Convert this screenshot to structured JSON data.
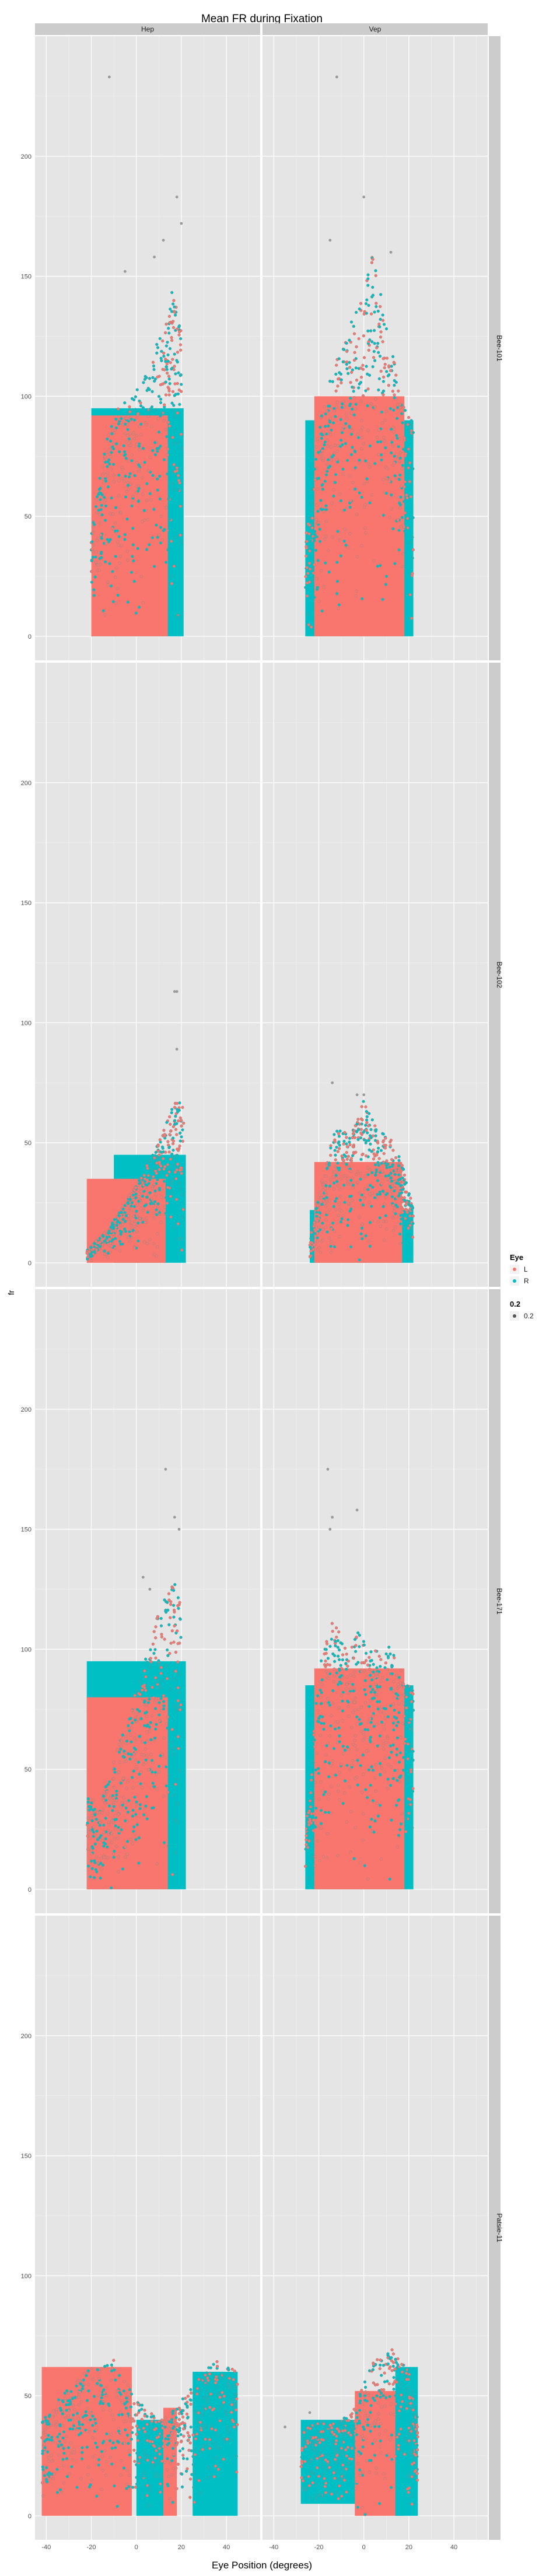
{
  "chart_data": {
    "type": "scatter",
    "title": "Mean FR during Fixation",
    "xlabel": "Eye Position (degrees)",
    "ylabel": "fr",
    "xlim": [
      -45,
      55
    ],
    "ylim": [
      -10,
      250
    ],
    "x_ticks": [
      -40,
      -20,
      0,
      20,
      40
    ],
    "x_tick_labels": [
      "-40",
      "-20",
      "0",
      "20",
      "40"
    ],
    "y_ticks": [
      0,
      50,
      100,
      150,
      200
    ],
    "y_tick_labels": [
      "0",
      "50",
      "100",
      "150",
      "200"
    ],
    "grid": true,
    "legend_position": "right",
    "facet_columns": [
      "Hep",
      "Vep"
    ],
    "facet_rows": [
      "Bee-101",
      "Bee-102",
      "Bee-171",
      "Patsie-11"
    ],
    "legend": {
      "eye_title": "Eye",
      "eye_entries": [
        {
          "label": "L",
          "color": "#F8766D"
        },
        {
          "label": "R",
          "color": "#00BFC4"
        }
      ],
      "size_title": "0.2",
      "size_entries": [
        {
          "label": "0.2"
        }
      ]
    },
    "colors": {
      "L": "#F8766D",
      "R": "#00BFC4",
      "panel_bg": "#E5E5E5",
      "strip_bg": "#CCCCCC",
      "grid": "#F2F2F2"
    },
    "panels": [
      {
        "row": "Bee-101",
        "col": "Hep",
        "bulk": [
          {
            "eye": "R",
            "x": [
              -20,
              21
            ],
            "y": [
              0,
              95
            ]
          },
          {
            "eye": "L",
            "x": [
              -20,
              14
            ],
            "y": [
              0,
              92
            ]
          }
        ],
        "profile": [
          [
            -20,
            42
          ],
          [
            -14,
            80
          ],
          [
            -8,
            95
          ],
          [
            -2,
            100
          ],
          [
            5,
            110
          ],
          [
            12,
            130
          ],
          [
            16,
            145
          ],
          [
            20,
            128
          ]
        ],
        "outliers": [
          {
            "x": -12,
            "y": 233
          },
          {
            "x": 12,
            "y": 165
          },
          {
            "x": 18,
            "y": 183
          },
          {
            "x": 20,
            "y": 172
          },
          {
            "x": -5,
            "y": 152
          },
          {
            "x": 8,
            "y": 158
          }
        ]
      },
      {
        "row": "Bee-101",
        "col": "Vep",
        "bulk": [
          {
            "eye": "R",
            "x": [
              -26,
              22
            ],
            "y": [
              0,
              90
            ]
          },
          {
            "eye": "L",
            "x": [
              -22,
              18
            ],
            "y": [
              0,
              100
            ]
          }
        ],
        "profile": [
          [
            -26,
            40
          ],
          [
            -20,
            88
          ],
          [
            -14,
            110
          ],
          [
            -8,
            125
          ],
          [
            -2,
            140
          ],
          [
            4,
            160
          ],
          [
            10,
            130
          ],
          [
            16,
            105
          ],
          [
            22,
            90
          ]
        ],
        "outliers": [
          {
            "x": -12,
            "y": 233
          },
          {
            "x": 0,
            "y": 183
          },
          {
            "x": -15,
            "y": 165
          },
          {
            "x": 12,
            "y": 160
          }
        ]
      },
      {
        "row": "Bee-102",
        "col": "Hep",
        "bulk": [
          {
            "eye": "R",
            "x": [
              -10,
              22
            ],
            "y": [
              0,
              45
            ]
          },
          {
            "eye": "L",
            "x": [
              -22,
              13
            ],
            "y": [
              0,
              35
            ]
          }
        ],
        "profile": [
          [
            -22,
            5
          ],
          [
            -15,
            12
          ],
          [
            -8,
            20
          ],
          [
            -2,
            30
          ],
          [
            4,
            40
          ],
          [
            10,
            50
          ],
          [
            16,
            65
          ],
          [
            21,
            72
          ]
        ],
        "outliers": [
          {
            "x": 17,
            "y": 113
          },
          {
            "x": 18,
            "y": 113
          },
          {
            "x": 18,
            "y": 89
          }
        ]
      },
      {
        "row": "Bee-102",
        "col": "Vep",
        "bulk": [
          {
            "eye": "R",
            "x": [
              -24,
              22
            ],
            "y": [
              0,
              22
            ]
          },
          {
            "eye": "L",
            "x": [
              -22,
              17
            ],
            "y": [
              0,
              42
            ]
          }
        ],
        "profile": [
          [
            -24,
            10
          ],
          [
            -18,
            38
          ],
          [
            -12,
            58
          ],
          [
            -6,
            52
          ],
          [
            0,
            68
          ],
          [
            6,
            55
          ],
          [
            12,
            52
          ],
          [
            17,
            42
          ],
          [
            22,
            22
          ]
        ],
        "outliers": [
          {
            "x": -14,
            "y": 75
          },
          {
            "x": -3,
            "y": 70
          },
          {
            "x": 0,
            "y": 70
          }
        ]
      },
      {
        "row": "Bee-171",
        "col": "Hep",
        "bulk": [
          {
            "eye": "R",
            "x": [
              -22,
              22
            ],
            "y": [
              0,
              95
            ]
          },
          {
            "eye": "L",
            "x": [
              -22,
              14
            ],
            "y": [
              0,
              80
            ]
          }
        ],
        "profile": [
          [
            -22,
            40
          ],
          [
            -16,
            35
          ],
          [
            -10,
            55
          ],
          [
            -4,
            70
          ],
          [
            2,
            90
          ],
          [
            8,
            110
          ],
          [
            14,
            125
          ],
          [
            20,
            130
          ]
        ],
        "outliers": [
          {
            "x": 13,
            "y": 175
          },
          {
            "x": 17,
            "y": 155
          },
          {
            "x": 19,
            "y": 150
          },
          {
            "x": 3,
            "y": 130
          },
          {
            "x": 6,
            "y": 125
          }
        ]
      },
      {
        "row": "Bee-171",
        "col": "Vep",
        "bulk": [
          {
            "eye": "R",
            "x": [
              -26,
              22
            ],
            "y": [
              0,
              85
            ]
          },
          {
            "eye": "L",
            "x": [
              -22,
              18
            ],
            "y": [
              0,
              92
            ]
          }
        ],
        "profile": [
          [
            -26,
            20
          ],
          [
            -20,
            92
          ],
          [
            -14,
            115
          ],
          [
            -8,
            100
          ],
          [
            -2,
            108
          ],
          [
            4,
            98
          ],
          [
            10,
            105
          ],
          [
            16,
            92
          ],
          [
            22,
            85
          ]
        ],
        "outliers": [
          {
            "x": -16,
            "y": 175
          },
          {
            "x": -3,
            "y": 158
          },
          {
            "x": -14,
            "y": 155
          },
          {
            "x": -15,
            "y": 150
          }
        ]
      },
      {
        "row": "Patsie-11",
        "col": "Hep",
        "bulk": [
          {
            "eye": "L",
            "x": [
              -42,
              -2
            ],
            "y": [
              0,
              62
            ]
          },
          {
            "eye": "R",
            "x": [
              0,
              12
            ],
            "y": [
              0,
              40
            ]
          },
          {
            "eye": "L",
            "x": [
              12,
              18
            ],
            "y": [
              0,
              45
            ]
          },
          {
            "eye": "R",
            "x": [
              25,
              45
            ],
            "y": [
              0,
              60
            ]
          }
        ],
        "profile": [
          [
            -42,
            40
          ],
          [
            -35,
            48
          ],
          [
            -28,
            55
          ],
          [
            -20,
            62
          ],
          [
            -10,
            65
          ],
          [
            0,
            50
          ],
          [
            10,
            40
          ],
          [
            18,
            45
          ],
          [
            25,
            55
          ],
          [
            35,
            65
          ],
          [
            45,
            60
          ]
        ],
        "outliers": []
      },
      {
        "row": "Patsie-11",
        "col": "Vep",
        "bulk": [
          {
            "eye": "R",
            "x": [
              -28,
              -2
            ],
            "y": [
              5,
              40
            ]
          },
          {
            "eye": "L",
            "x": [
              -4,
              18
            ],
            "y": [
              0,
              52
            ]
          },
          {
            "eye": "R",
            "x": [
              14,
              24
            ],
            "y": [
              0,
              62
            ]
          }
        ],
        "profile": [
          [
            -28,
            35
          ],
          [
            -20,
            40
          ],
          [
            -12,
            38
          ],
          [
            -4,
            45
          ],
          [
            4,
            65
          ],
          [
            12,
            70
          ],
          [
            20,
            62
          ],
          [
            24,
            40
          ]
        ],
        "outliers": [
          {
            "x": -35,
            "y": 37
          },
          {
            "x": -24,
            "y": 43
          }
        ]
      }
    ]
  }
}
